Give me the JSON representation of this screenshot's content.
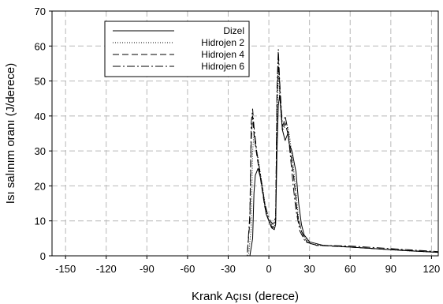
{
  "chart_data": {
    "type": "line",
    "title": "",
    "xlabel": "Krank Açısı (derece)",
    "ylabel": "Isı salınım oranı (J/derece)",
    "xlim": [
      -160,
      125
    ],
    "ylim": [
      0,
      70
    ],
    "xticks": [
      -150,
      -120,
      -90,
      -60,
      -30,
      0,
      30,
      60,
      90,
      120
    ],
    "yticks": [
      0,
      10,
      20,
      30,
      40,
      50,
      60,
      70
    ],
    "grid": true,
    "legend_position": "top-left",
    "series": [
      {
        "name": "Dizel",
        "dash": "",
        "points": [
          [
            -160,
            0
          ],
          [
            -20,
            0
          ],
          [
            -14,
            0
          ],
          [
            -12,
            5
          ],
          [
            -11,
            18
          ],
          [
            -10,
            23
          ],
          [
            -8,
            25
          ],
          [
            -6,
            22
          ],
          [
            -4,
            17
          ],
          [
            -2,
            12
          ],
          [
            0,
            10
          ],
          [
            2,
            8
          ],
          [
            4,
            7.5
          ],
          [
            5,
            9
          ],
          [
            6,
            30
          ],
          [
            7,
            43
          ],
          [
            8,
            46
          ],
          [
            9,
            41
          ],
          [
            10,
            36
          ],
          [
            12,
            33
          ],
          [
            14,
            35
          ],
          [
            15,
            32
          ],
          [
            17,
            30
          ],
          [
            20,
            24
          ],
          [
            22,
            15
          ],
          [
            24,
            9
          ],
          [
            26,
            6
          ],
          [
            30,
            4
          ],
          [
            40,
            3
          ],
          [
            60,
            2.5
          ],
          [
            80,
            2
          ],
          [
            100,
            1.5
          ],
          [
            125,
            1
          ]
        ]
      },
      {
        "name": "Hidrojen 2",
        "dash": "1,2",
        "points": [
          [
            -160,
            0
          ],
          [
            -20,
            0
          ],
          [
            -15,
            0
          ],
          [
            -13,
            8
          ],
          [
            -12,
            30
          ],
          [
            -11,
            35
          ],
          [
            -10,
            32
          ],
          [
            -8,
            28
          ],
          [
            -6,
            23
          ],
          [
            -4,
            18
          ],
          [
            -2,
            13
          ],
          [
            0,
            10
          ],
          [
            2,
            9
          ],
          [
            4,
            8
          ],
          [
            5,
            10
          ],
          [
            6,
            40
          ],
          [
            7,
            53
          ],
          [
            8,
            46
          ],
          [
            9,
            40
          ],
          [
            10,
            36
          ],
          [
            12,
            37
          ],
          [
            13,
            38
          ],
          [
            15,
            35
          ],
          [
            18,
            26
          ],
          [
            20,
            18
          ],
          [
            22,
            10
          ],
          [
            25,
            6
          ],
          [
            30,
            3.5
          ],
          [
            40,
            3
          ],
          [
            60,
            2.5
          ],
          [
            80,
            2
          ],
          [
            100,
            1.5
          ],
          [
            125,
            1
          ]
        ]
      },
      {
        "name": "Hidrojen 4",
        "dash": "8,4",
        "points": [
          [
            -160,
            0
          ],
          [
            -20,
            0
          ],
          [
            -16,
            0
          ],
          [
            -14,
            10
          ],
          [
            -13,
            33
          ],
          [
            -12,
            40
          ],
          [
            -11,
            35
          ],
          [
            -9,
            29
          ],
          [
            -7,
            24
          ],
          [
            -5,
            19
          ],
          [
            -3,
            14
          ],
          [
            -1,
            11
          ],
          [
            1,
            9
          ],
          [
            3,
            8
          ],
          [
            5,
            10
          ],
          [
            6,
            44
          ],
          [
            7,
            56
          ],
          [
            8,
            48
          ],
          [
            9,
            42
          ],
          [
            10,
            36
          ],
          [
            11,
            37
          ],
          [
            12,
            38
          ],
          [
            14,
            35
          ],
          [
            17,
            27
          ],
          [
            19,
            20
          ],
          [
            21,
            12
          ],
          [
            24,
            7
          ],
          [
            28,
            4
          ],
          [
            35,
            3
          ],
          [
            60,
            2.5
          ],
          [
            80,
            2
          ],
          [
            100,
            1.6
          ],
          [
            125,
            1
          ]
        ]
      },
      {
        "name": "Hidrojen 6",
        "dash": "10,3,2,3",
        "points": [
          [
            -160,
            0
          ],
          [
            -20,
            0
          ],
          [
            -16,
            0
          ],
          [
            -14,
            12
          ],
          [
            -13,
            38
          ],
          [
            -12,
            42
          ],
          [
            -11,
            37
          ],
          [
            -9,
            30
          ],
          [
            -7,
            25
          ],
          [
            -5,
            20
          ],
          [
            -3,
            15
          ],
          [
            -1,
            12
          ],
          [
            1,
            10
          ],
          [
            3,
            9
          ],
          [
            5,
            11
          ],
          [
            6,
            48
          ],
          [
            7,
            59
          ],
          [
            8,
            50
          ],
          [
            9,
            43
          ],
          [
            10,
            37
          ],
          [
            11,
            38
          ],
          [
            12,
            40
          ],
          [
            14,
            36
          ],
          [
            16,
            28
          ],
          [
            18,
            20
          ],
          [
            20,
            13
          ],
          [
            23,
            7
          ],
          [
            27,
            4
          ],
          [
            35,
            3
          ],
          [
            60,
            2.8
          ],
          [
            80,
            2.3
          ],
          [
            100,
            1.8
          ],
          [
            125,
            1.2
          ]
        ]
      }
    ]
  }
}
